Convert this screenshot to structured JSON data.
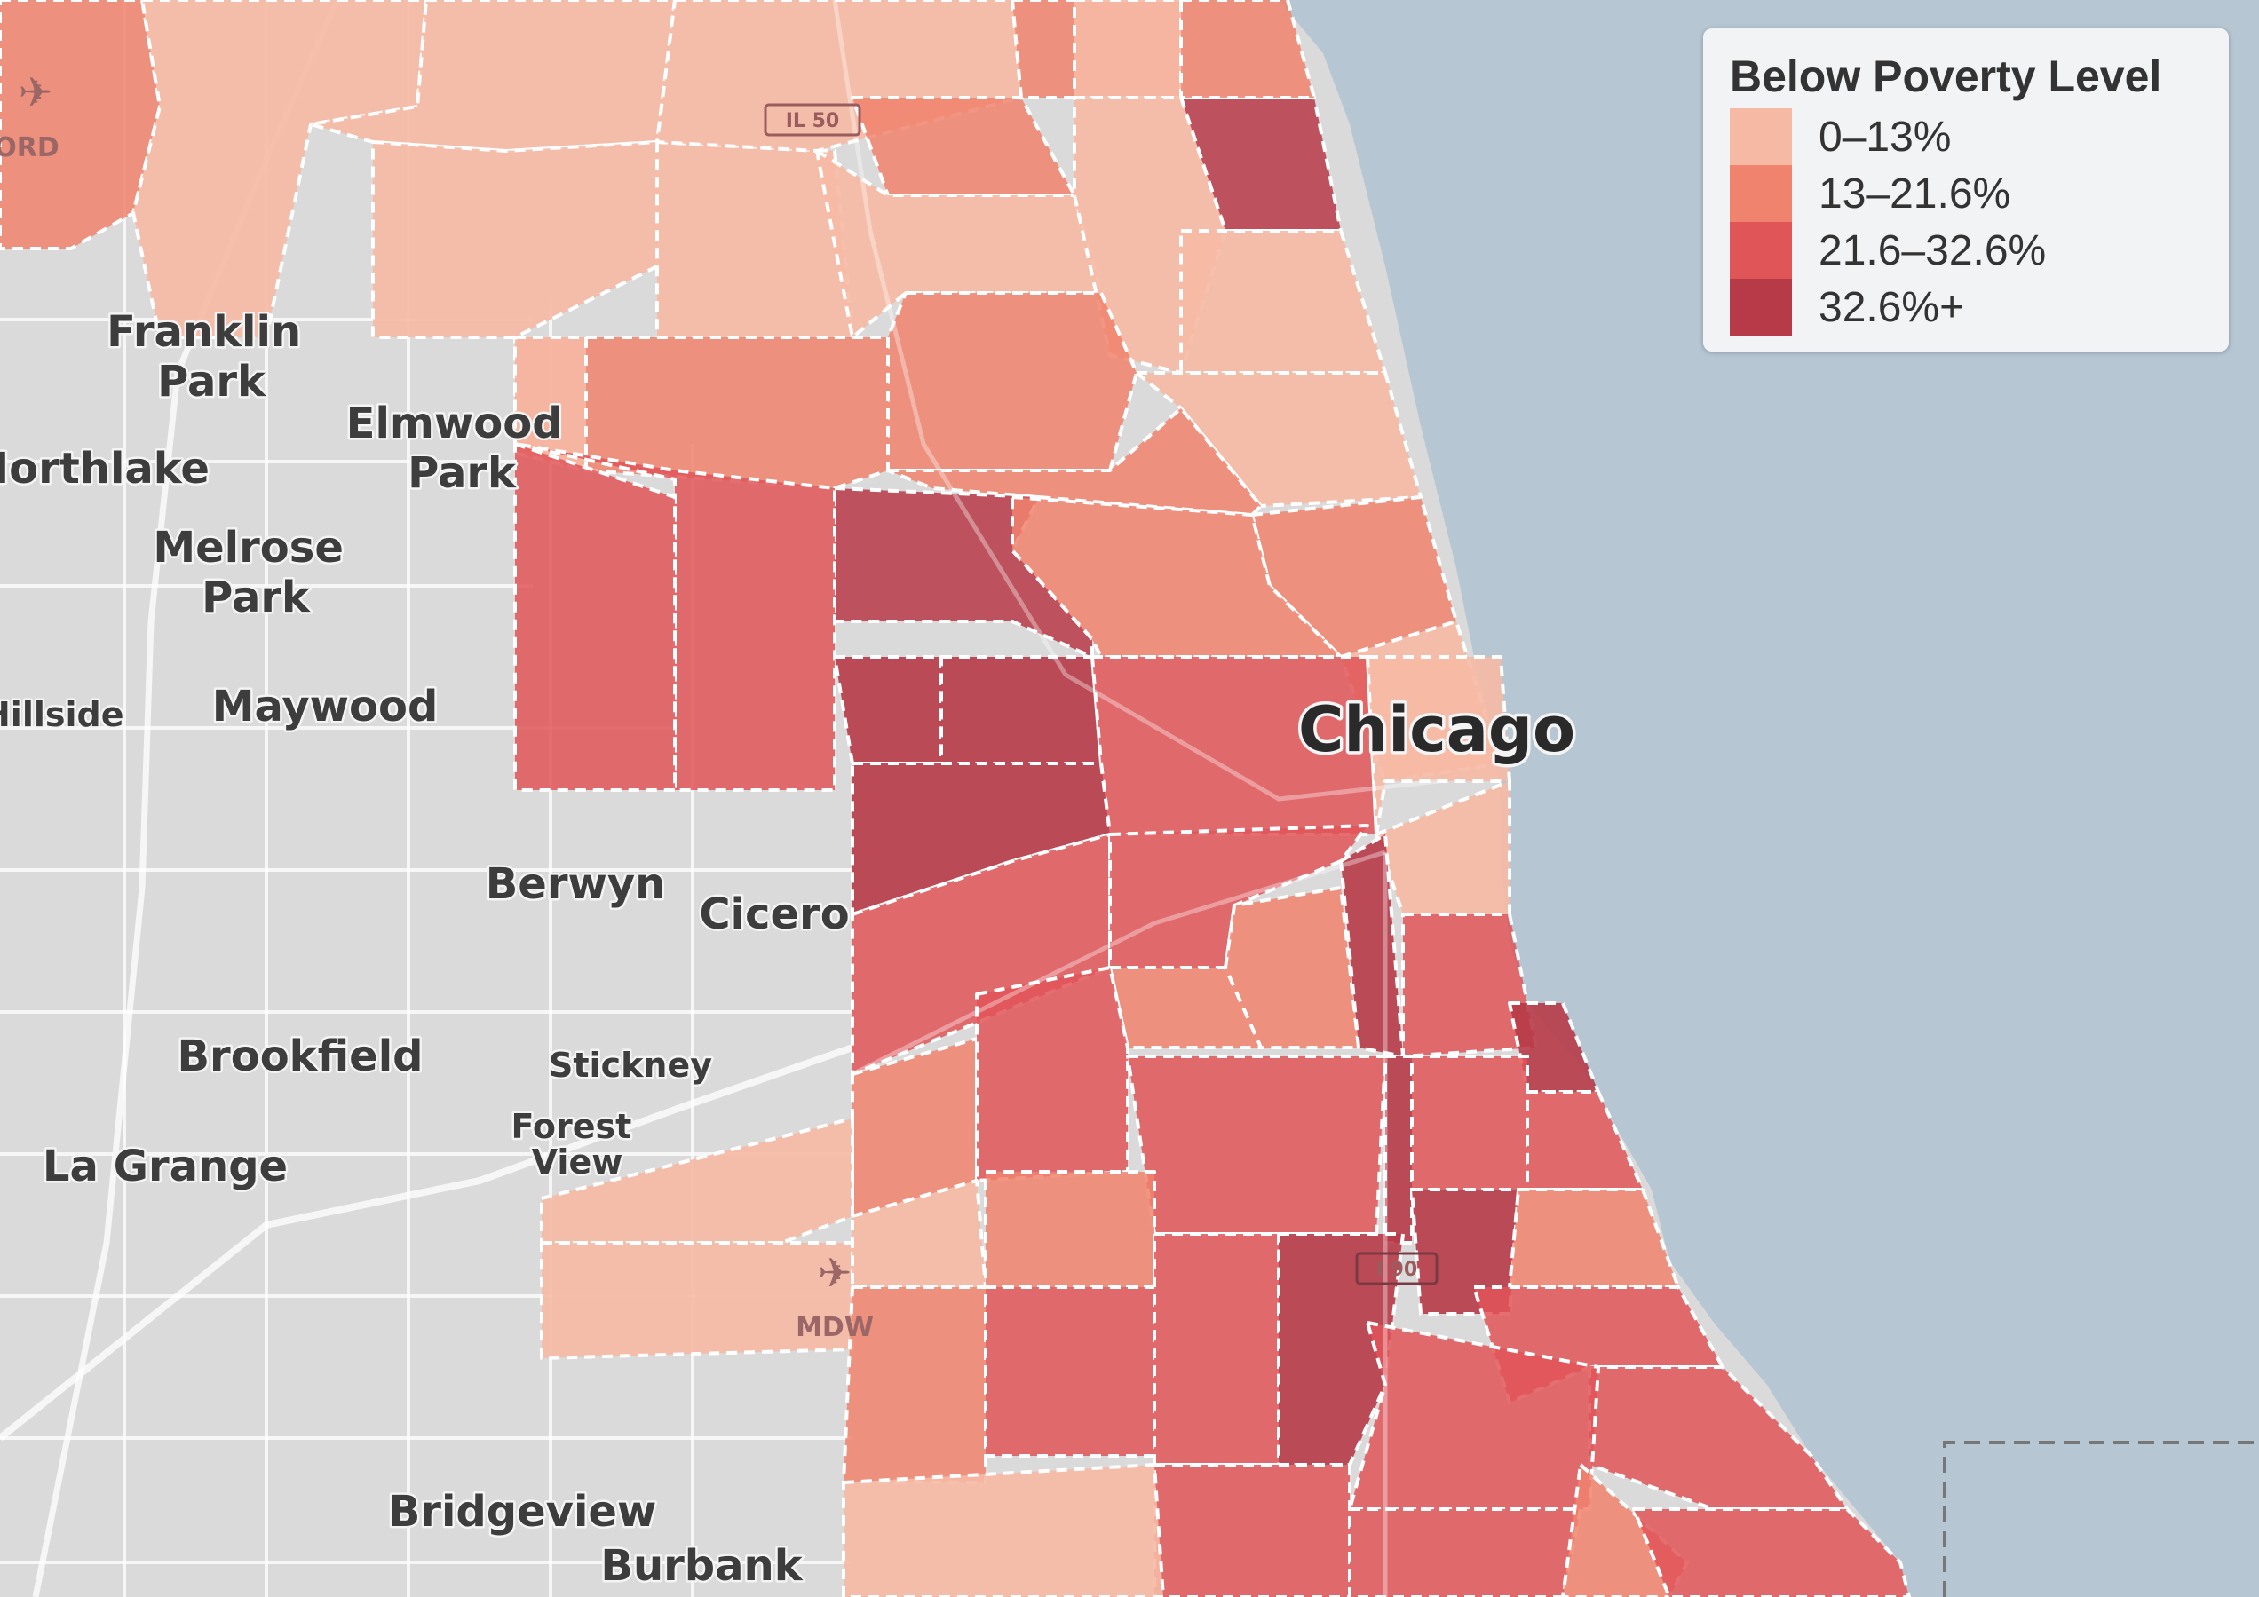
{
  "legend": {
    "title": "Below Poverty Level",
    "items": [
      {
        "label": "0–13%",
        "color": "#f6b9a4"
      },
      {
        "label": "13–21.6%",
        "color": "#f0836d"
      },
      {
        "label": "21.6–32.6%",
        "color": "#e05558"
      },
      {
        "label": "32.6%+",
        "color": "#b73a48"
      }
    ]
  },
  "map": {
    "water_color": "#b6c6d3",
    "land_color": "#dadada",
    "city_label": "Chicago",
    "place_labels": [
      "Franklin Park",
      "Elmwood Park",
      "Northlake",
      "Melrose Park",
      "Hillside",
      "Maywood",
      "Berwyn",
      "Cicero",
      "Brookfield",
      "Stickney",
      "Forest View",
      "La Grange",
      "Bridgeview",
      "Burbank"
    ],
    "road_shields": [
      "IL 50",
      "I 90"
    ],
    "airports": [
      "ORD",
      "MDW"
    ]
  }
}
